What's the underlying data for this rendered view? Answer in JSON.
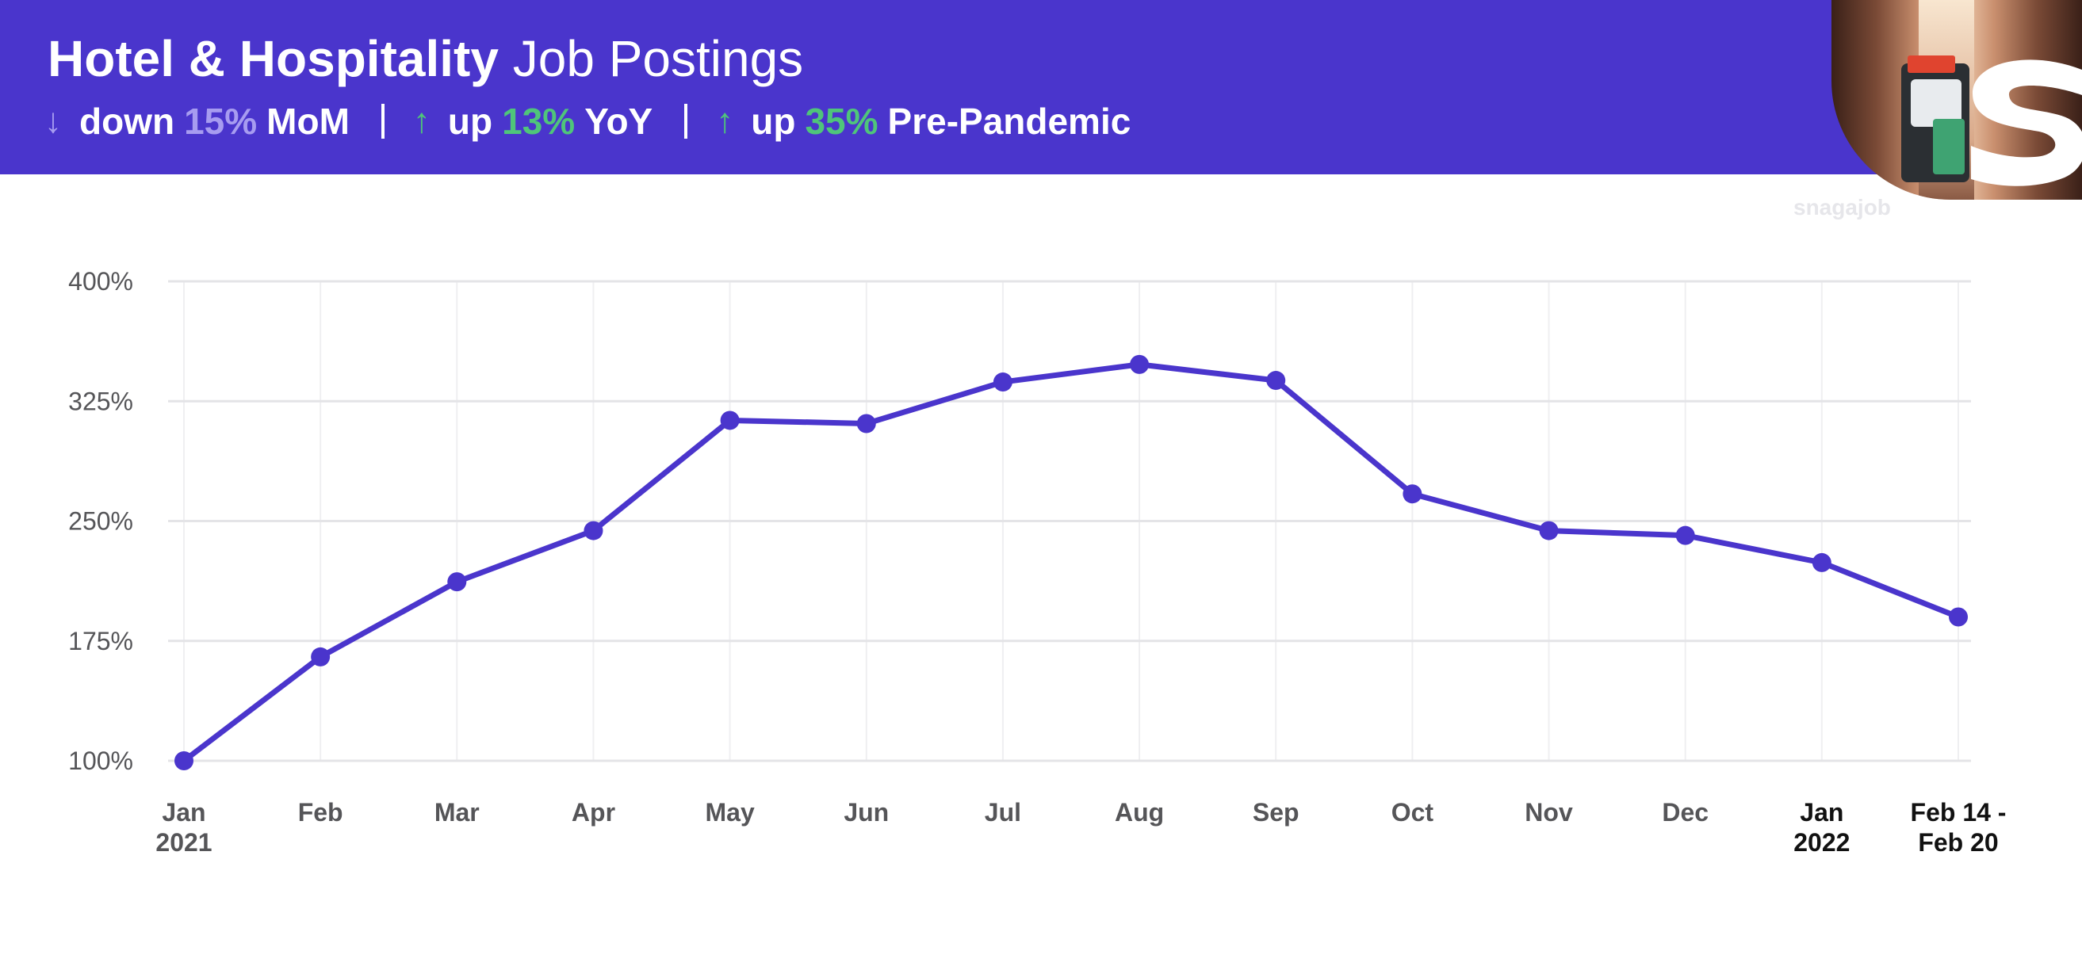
{
  "header": {
    "title_bold": "Hotel & Hospitality",
    "title_light": "Job Postings",
    "stats": [
      {
        "direction": "down",
        "arrow": "↓",
        "prefix": "down",
        "value": "15%",
        "suffix": "MoM"
      },
      {
        "direction": "up",
        "arrow": "↑",
        "prefix": "up",
        "value": "13%",
        "suffix": "YoY"
      },
      {
        "direction": "up",
        "arrow": "↑",
        "prefix": "up",
        "value": "35%",
        "suffix": "Pre-Pandemic"
      }
    ]
  },
  "brand": {
    "watermark": "snagajob",
    "logo_letter": "s",
    "banner_color": "#4a35cc",
    "line_color": "#4a35cc",
    "down_color": "#a79cf0",
    "up_color": "#4fc57a"
  },
  "chart_data": {
    "type": "line",
    "title": "Hotel & Hospitality Job Postings",
    "xlabel": "",
    "ylabel": "",
    "ylim": [
      100,
      400
    ],
    "yticks": [
      100,
      175,
      250,
      325,
      400
    ],
    "ytick_labels": [
      "100%",
      "175%",
      "250%",
      "325%",
      "400%"
    ],
    "grid": true,
    "categories": [
      [
        "Jan",
        "2021"
      ],
      [
        "Feb"
      ],
      [
        "Mar"
      ],
      [
        "Apr"
      ],
      [
        "May"
      ],
      [
        "Jun"
      ],
      [
        "Jul"
      ],
      [
        "Aug"
      ],
      [
        "Sep"
      ],
      [
        "Oct"
      ],
      [
        "Nov"
      ],
      [
        "Dec"
      ],
      [
        "Jan",
        "2022"
      ],
      [
        "Feb 14 -",
        "Feb 20"
      ]
    ],
    "dark_categories": [
      12,
      13
    ],
    "series": [
      {
        "name": "Job Postings",
        "values": [
          100,
          165,
          212,
          244,
          313,
          311,
          337,
          348,
          338,
          267,
          244,
          241,
          224,
          190
        ]
      }
    ]
  }
}
